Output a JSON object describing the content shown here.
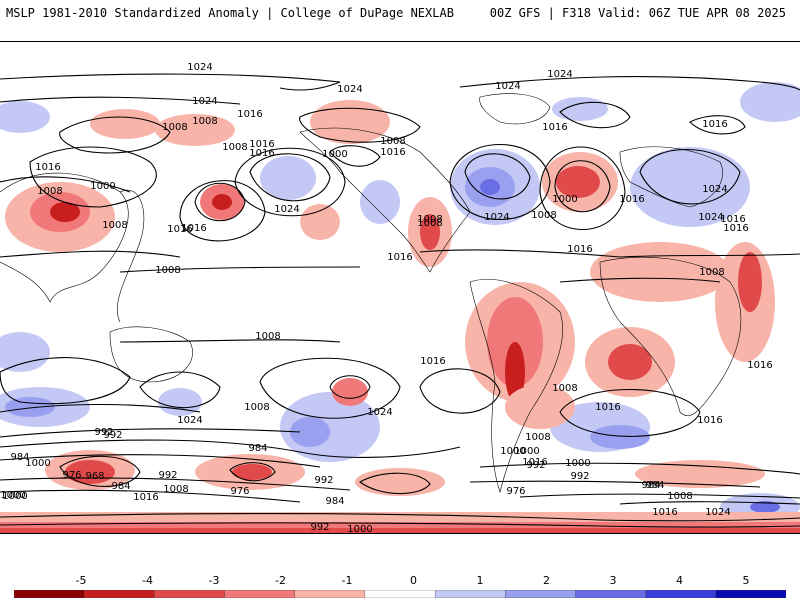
{
  "header": {
    "left_title": "MSLP 1981-2010 Standardized Anomaly | College of DuPage NEXLAB",
    "right_title": "00Z GFS | F318 Valid: 06Z TUE APR 08 2025"
  },
  "map": {
    "contour_labels": [
      "1024",
      "1024",
      "1024",
      "1024",
      "1008",
      "1016",
      "1008",
      "1016",
      "1008",
      "1016",
      "1000",
      "1016",
      "1008",
      "1000",
      "1008",
      "1024",
      "1016",
      "1024",
      "1016",
      "1024",
      "1000",
      "1008",
      "1016",
      "1016",
      "1008",
      "1016",
      "1008",
      "1016",
      "1008",
      "1008",
      "1016",
      "1008",
      "1016",
      "1024",
      "1016",
      "1024",
      "1016",
      "1008",
      "1016",
      "1008",
      "1016",
      "1024",
      "1008",
      "1000",
      "992",
      "984",
      "976",
      "968",
      "984",
      "992",
      "1016",
      "1008",
      "1000",
      "984",
      "976",
      "992",
      "984",
      "992",
      "1000",
      "1016",
      "1008",
      "1000",
      "992",
      "984",
      "976",
      "1000",
      "992",
      "984",
      "1008",
      "1016",
      "1024",
      "1000",
      "992",
      "1000",
      "1016",
      "1016",
      "1024"
    ]
  },
  "colorbar": {
    "ticks": [
      "-5",
      "-4",
      "-3",
      "-2",
      "-1",
      "0",
      "1",
      "2",
      "3",
      "4",
      "5"
    ],
    "colors": [
      "#8b0000",
      "#c81e1e",
      "#e04a4a",
      "#f07878",
      "#f8b4a8",
      "#ffffff",
      "#c4c8f4",
      "#9aa0f0",
      "#6a6ee6",
      "#3c3cd8",
      "#0a0ab4"
    ]
  }
}
